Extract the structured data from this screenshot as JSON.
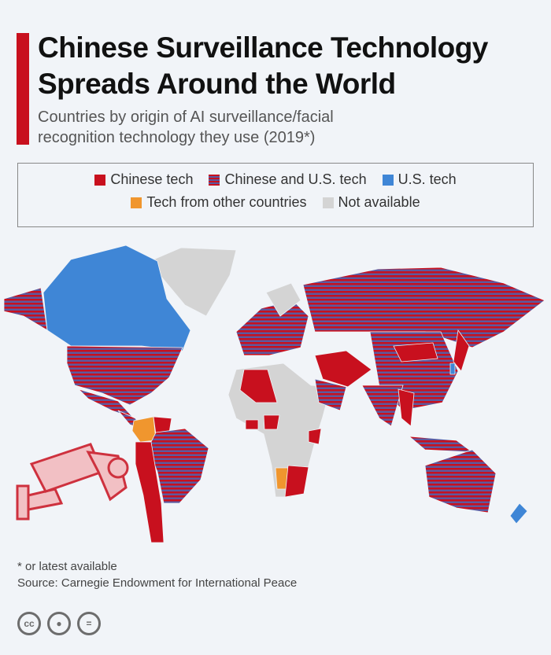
{
  "header": {
    "title_line1": "Chinese Surveillance Technology",
    "title_line2": "Spreads Around the World",
    "subtitle_line1": "Countries by origin of AI surveillance/facial",
    "subtitle_line2": "recognition technology they use (2019*)"
  },
  "legend": {
    "items": [
      {
        "label": "Chinese tech",
        "color": "#c8101e"
      },
      {
        "label": "Chinese and U.S. tech",
        "color": "striped"
      },
      {
        "label": "U.S. tech",
        "color": "#3f86d6"
      },
      {
        "label": "Tech from other countries",
        "color": "#f0962e"
      },
      {
        "label": "Not available",
        "color": "#d4d4d4"
      }
    ]
  },
  "colors": {
    "chinese": "#c8101e",
    "stripe_alt": "#5b5aa0",
    "us": "#3f86d6",
    "other": "#f0962e",
    "na": "#d4d4d4",
    "accent": "#c8101e"
  },
  "footer": {
    "note": "* or latest available",
    "source": "Source: Carnegie Endowment for International Peace",
    "cc_label": "cc",
    "nd_label": "="
  }
}
